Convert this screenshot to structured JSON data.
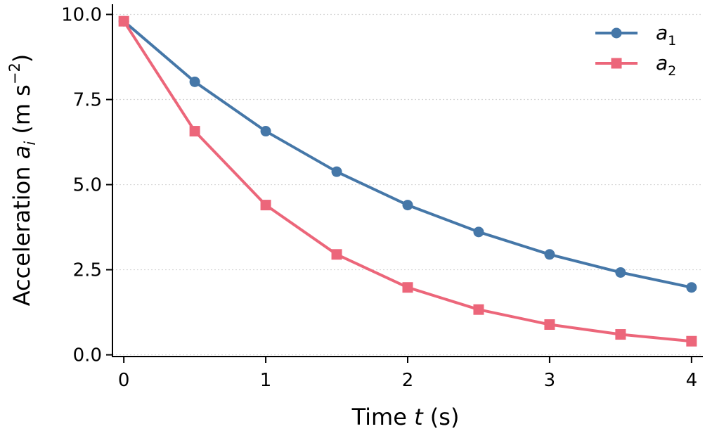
{
  "chart_data": {
    "type": "line",
    "xlabel_parts": {
      "prefix": "Time ",
      "var": "t",
      "suffix": " (s)"
    },
    "ylabel_parts": {
      "prefix": "Acceleration ",
      "var": "a",
      "sub": "i",
      "unit_open": " (m s",
      "unit_exp": "−2",
      "unit_close": ")"
    },
    "x_ticks": [
      "0",
      "1",
      "2",
      "3",
      "4"
    ],
    "x_tick_values": [
      0,
      1,
      2,
      3,
      4
    ],
    "y_ticks": [
      "0.0",
      "2.5",
      "5.0",
      "7.5",
      "10.0"
    ],
    "y_tick_values": [
      0,
      2.5,
      5,
      7.5,
      10
    ],
    "xlim": [
      -0.08,
      4.08
    ],
    "ylim": [
      -0.05,
      10.3
    ],
    "grid": "y-dotted",
    "legend_position": "top-right",
    "x": [
      0,
      0.5,
      1,
      1.5,
      2,
      2.5,
      3,
      3.5,
      4
    ],
    "series": [
      {
        "name_var": "a",
        "name_sub": "1",
        "color": "#4577a8",
        "marker": "circle",
        "values": [
          9.8,
          8.02,
          6.57,
          5.38,
          4.4,
          3.61,
          2.95,
          2.42,
          1.98
        ]
      },
      {
        "name_var": "a",
        "name_sub": "2",
        "color": "#ec667a",
        "marker": "square",
        "values": [
          9.8,
          6.57,
          4.4,
          2.95,
          1.98,
          1.33,
          0.89,
          0.6,
          0.4
        ]
      }
    ]
  }
}
